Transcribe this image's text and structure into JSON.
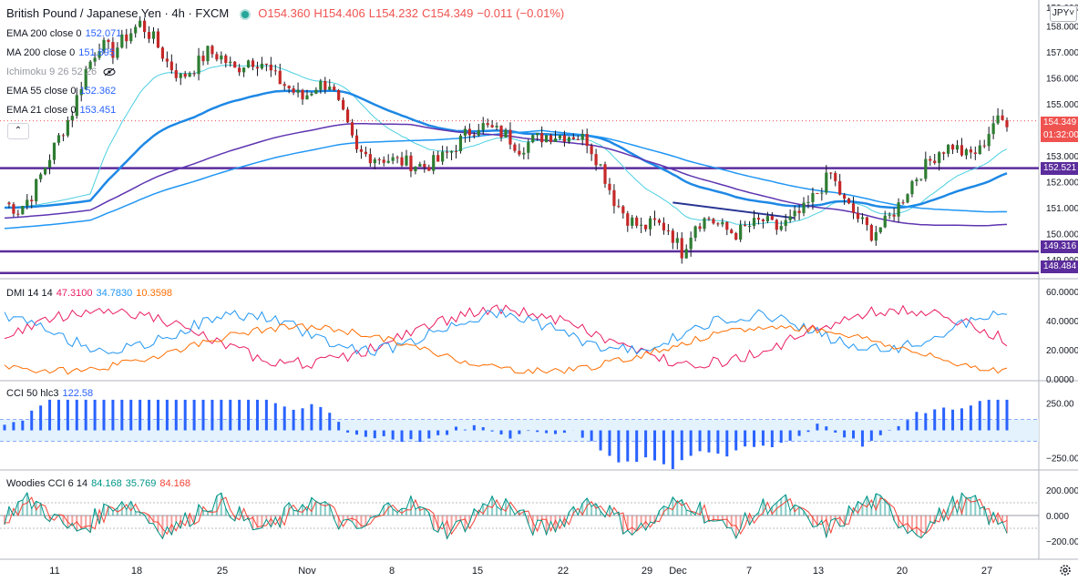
{
  "header": {
    "symbol": "British Pound / Japanese Yen · 4h · FXCM",
    "ohlc": {
      "o": "O154.360",
      "h": "H154.406",
      "l": "L154.232",
      "c": "C154.349",
      "chg": "−0.011 (−0.01%)"
    }
  },
  "currency_button": "JPY",
  "collapse_icon": "chevron-up-icon",
  "legends": {
    "ema200": {
      "label": "EMA 200 close 0",
      "value": "152.071",
      "color": "#2196f3"
    },
    "ma200": {
      "label": "MA 200 close 0",
      "value": "151.895",
      "color": "#2196f3"
    },
    "ichimoku": {
      "label": "Ichimoku 9 26 52 26",
      "icon": "eye-off-icon"
    },
    "ema55": {
      "label": "EMA 55 close 0",
      "value": "152.362",
      "color": "#2196f3"
    },
    "ema21": {
      "label": "EMA 21 close 0",
      "value": "153.451",
      "color": "#2196f3"
    },
    "dmi": {
      "label": "DMI 14 14",
      "v1": "47.3100",
      "v2": "34.7830",
      "v3": "10.3598",
      "c1": "#e91e63",
      "c2": "#2196f3",
      "c3": "#ff6d00"
    },
    "cci": {
      "label": "CCI 50 hlc3",
      "value": "122.58",
      "color": "#2962ff"
    },
    "woodies": {
      "label": "Woodies CCI 6 14",
      "v1": "84.168",
      "v2": "35.769",
      "v3": "84.168",
      "c1": "#009688",
      "c2": "#009688",
      "c3": "#f44336"
    }
  },
  "price_axis": {
    "ticks": [
      "158.000",
      "157.000",
      "156.000",
      "155.000",
      "154.000",
      "153.000",
      "152.000",
      "151.000",
      "150.000",
      "149.000"
    ],
    "top_tick": "159.000"
  },
  "price_labels": [
    {
      "text": "154.349",
      "color": "#ef5350"
    },
    {
      "text": "01:32:00",
      "color": "#ef5350"
    },
    {
      "text": "152.521",
      "color": "#5b2c9c"
    },
    {
      "text": "149.316",
      "color": "#5b2c9c"
    },
    {
      "text": "148.484",
      "color": "#5b2c9c"
    }
  ],
  "dmi_axis": [
    "60.0000",
    "40.0000",
    "20.0000",
    "0.0000"
  ],
  "cci_axis": [
    "250.00",
    "−250.00"
  ],
  "woodies_axis": [
    "200.000",
    "0.000",
    "−200.000"
  ],
  "time_axis": [
    "11",
    "18",
    "25",
    "Nov",
    "8",
    "15",
    "22",
    "29",
    "Dec",
    "7",
    "13",
    "20",
    "27"
  ],
  "settings_icon": "gear-icon",
  "chart_data": {
    "type": "candlestick",
    "pair": "GBPJPY",
    "timeframe": "4h",
    "ylim": [
      148.3,
      159.0
    ],
    "horizontal_levels": [
      152.521,
      149.316,
      148.484
    ],
    "last_price": 154.349,
    "price_path": [
      [
        0,
        151.2
      ],
      [
        3,
        150.9
      ],
      [
        6,
        151.5
      ],
      [
        9,
        152.6
      ],
      [
        12,
        153.7
      ],
      [
        15,
        154.7
      ],
      [
        18,
        156.3
      ],
      [
        21,
        157.3
      ],
      [
        24,
        157.0
      ],
      [
        27,
        157.6
      ],
      [
        30,
        158.1
      ],
      [
        33,
        157.5
      ],
      [
        36,
        156.6
      ],
      [
        39,
        156.0
      ],
      [
        42,
        156.4
      ],
      [
        45,
        157.0
      ],
      [
        48,
        156.8
      ],
      [
        51,
        156.3
      ],
      [
        54,
        156.7
      ],
      [
        57,
        156.6
      ],
      [
        60,
        156.0
      ],
      [
        63,
        155.6
      ],
      [
        66,
        155.2
      ],
      [
        69,
        155.7
      ],
      [
        72,
        155.8
      ],
      [
        75,
        154.5
      ],
      [
        78,
        153.1
      ],
      [
        81,
        153.0
      ],
      [
        84,
        152.9
      ],
      [
        87,
        152.8
      ],
      [
        90,
        152.7
      ],
      [
        93,
        152.6
      ],
      [
        96,
        152.8
      ],
      [
        99,
        153.2
      ],
      [
        102,
        153.8
      ],
      [
        105,
        154.2
      ],
      [
        108,
        154.0
      ],
      [
        111,
        153.8
      ],
      [
        114,
        153.3
      ],
      [
        117,
        153.6
      ],
      [
        120,
        153.8
      ],
      [
        123,
        153.8
      ],
      [
        126,
        153.8
      ],
      [
        129,
        153.6
      ],
      [
        132,
        152.6
      ],
      [
        135,
        151.3
      ],
      [
        138,
        150.6
      ],
      [
        141,
        150.2
      ],
      [
        144,
        150.4
      ],
      [
        147,
        150.2
      ],
      [
        150,
        149.3
      ],
      [
        153,
        150.4
      ],
      [
        156,
        150.6
      ],
      [
        159,
        150.2
      ],
      [
        162,
        150.0
      ],
      [
        165,
        150.3
      ],
      [
        168,
        150.5
      ],
      [
        171,
        150.2
      ],
      [
        174,
        150.5
      ],
      [
        177,
        150.9
      ],
      [
        180,
        151.6
      ],
      [
        183,
        152.3
      ],
      [
        186,
        151.2
      ],
      [
        189,
        150.6
      ],
      [
        192,
        150.0
      ],
      [
        195,
        150.4
      ],
      [
        198,
        151.1
      ],
      [
        201,
        152.0
      ],
      [
        204,
        152.6
      ],
      [
        207,
        153.2
      ],
      [
        210,
        153.4
      ],
      [
        213,
        153.0
      ],
      [
        216,
        153.2
      ],
      [
        219,
        154.3
      ],
      [
        222,
        154.35
      ]
    ],
    "dmi_series": [
      "+DI",
      "−DI",
      "ADX"
    ],
    "cci_value": 122.58,
    "woodies_values": [
      84.168,
      35.769,
      84.168
    ]
  }
}
